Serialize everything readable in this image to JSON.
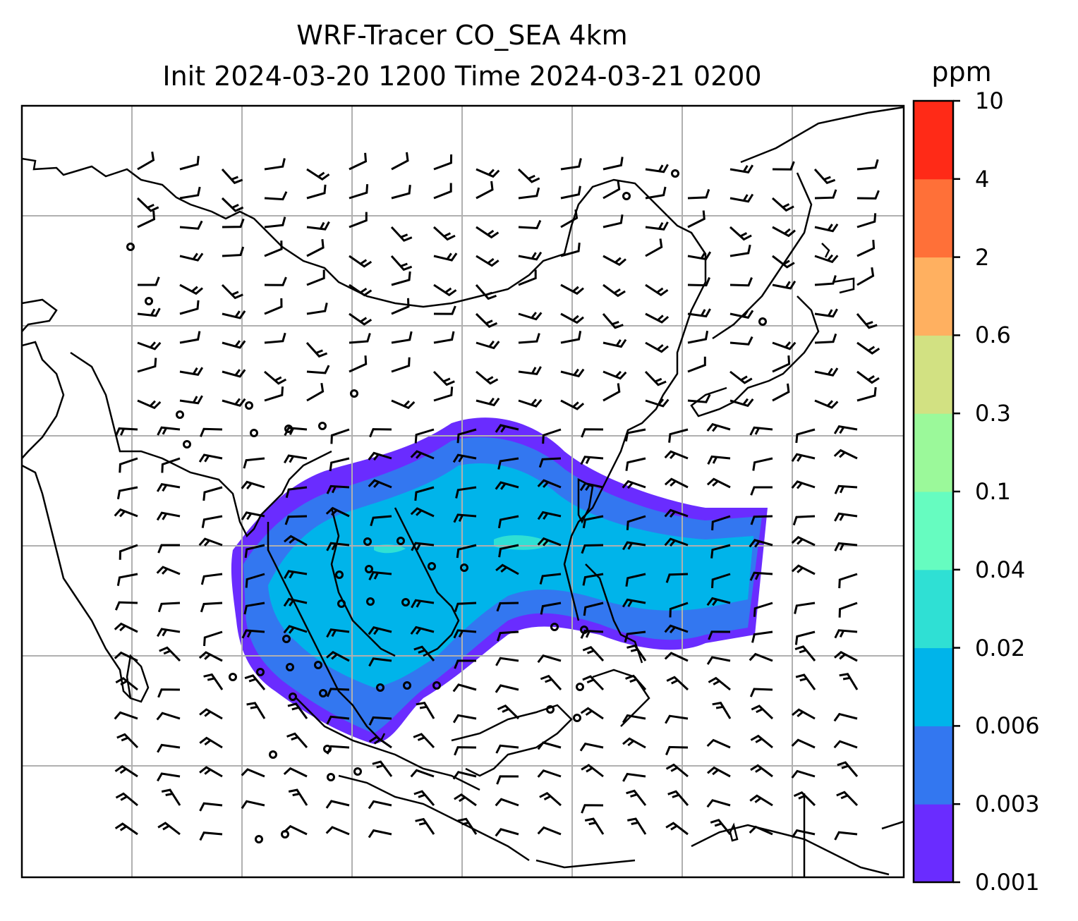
{
  "title": {
    "line1": "WRF-Tracer CO_SEA 4km",
    "line2": "Init 2024-03-20 1200 Time 2024-03-21 0200"
  },
  "colorbar": {
    "unit": "ppm",
    "levels": [
      "0.001",
      "0.003",
      "0.006",
      "0.02",
      "0.04",
      "0.1",
      "0.3",
      "0.6",
      "2",
      "4",
      "10"
    ],
    "colors": [
      "#6a2cff",
      "#3377f0",
      "#00b4ea",
      "#2fe0d4",
      "#66fcc0",
      "#9bf99a",
      "#d2e182",
      "#ffb060",
      "#ff7038",
      "#ff2a17"
    ]
  },
  "map": {
    "background": "#ffffff",
    "coastline_color": "#000000",
    "gridline_color": "#b0b0b0",
    "features": [
      "coastlines",
      "country-borders",
      "gridlines",
      "tracer-plume",
      "wind-barbs",
      "calm-wind-circles"
    ]
  }
}
